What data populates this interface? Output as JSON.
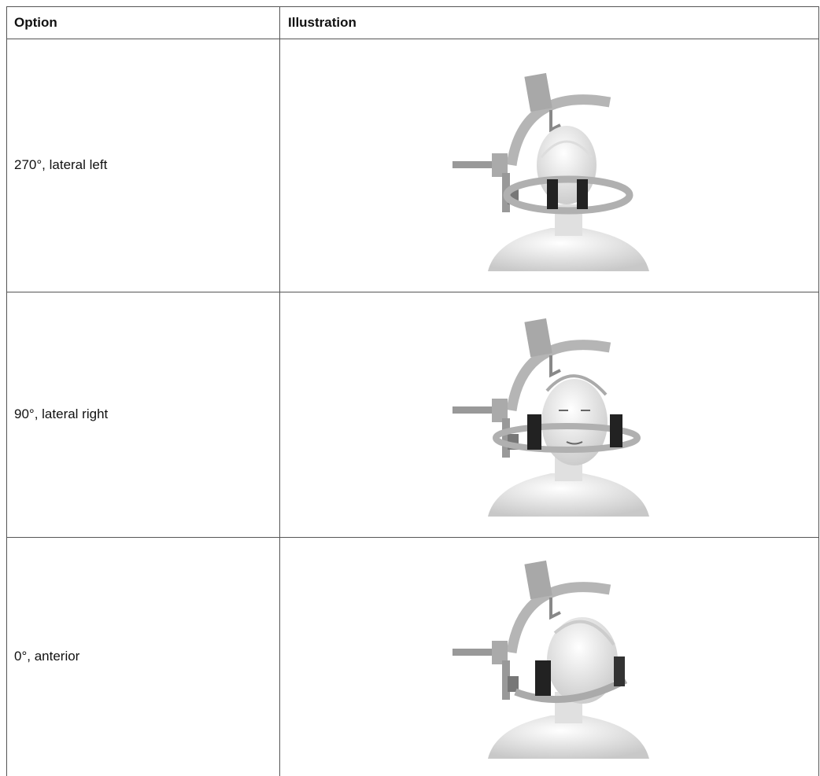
{
  "table": {
    "header": [
      "Option",
      "Illustration"
    ],
    "rows": [
      {
        "option": "270°, lateral left"
      },
      {
        "option": "90°, lateral right"
      },
      {
        "option": "0°, anterior"
      }
    ]
  }
}
